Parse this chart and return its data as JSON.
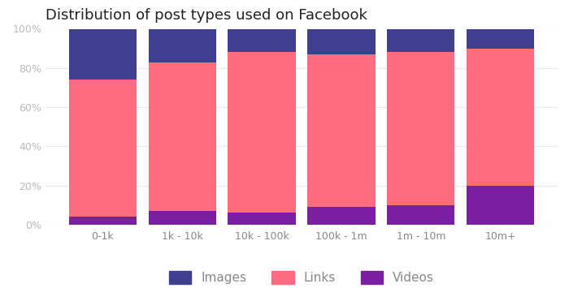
{
  "categories": [
    "0-1k",
    "1k - 10k",
    "10k - 100k",
    "100k - 1m",
    "1m - 10m",
    "10m+"
  ],
  "videos": [
    4,
    7,
    6,
    9,
    10,
    20
  ],
  "links": [
    70,
    76,
    82,
    78,
    78,
    70
  ],
  "images": [
    26,
    17,
    12,
    13,
    12,
    10
  ],
  "color_videos": "#7b1fa2",
  "color_links": "#ff6b81",
  "color_images": "#3f3f8f",
  "title": "Distribution of post types used on Facebook",
  "title_fontsize": 13,
  "tick_fontsize": 9,
  "legend_fontsize": 11,
  "bg_color": "#ffffff",
  "bar_width": 0.85,
  "ylim": [
    0,
    100
  ]
}
